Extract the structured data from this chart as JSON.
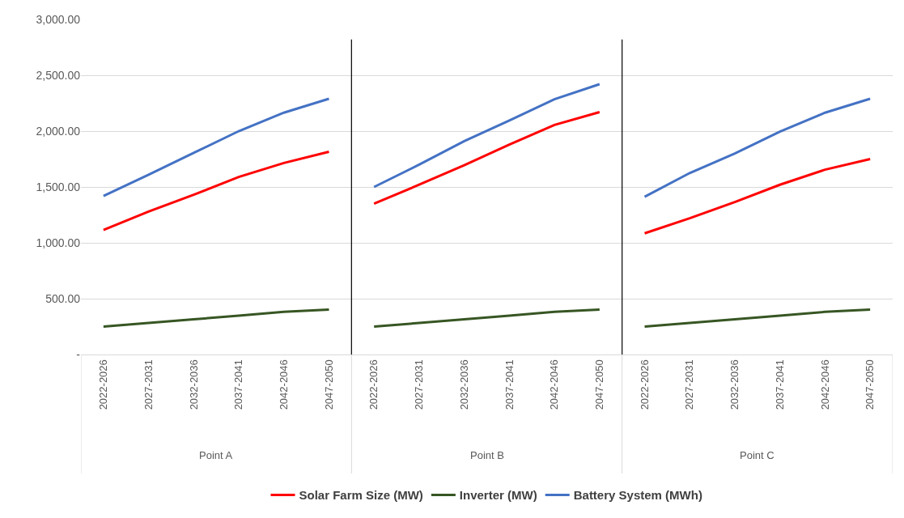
{
  "chart_data": {
    "type": "line",
    "categories": [
      "2022-2026",
      "2027-2031",
      "2032-2036",
      "2037-2041",
      "2042-2046",
      "2047-2050",
      "2022-2026",
      "2027-2031",
      "2032-2036",
      "2037-2041",
      "2042-2046",
      "2047-2050",
      "2022-2026",
      "2027-2031",
      "2032-2036",
      "2037-2041",
      "2042-2046",
      "2047-2050"
    ],
    "series": [
      {
        "name": "Solar Farm Size (MW)",
        "color": "#ff0000",
        "values": [
          1115,
          1280,
          1430,
          1590,
          1715,
          1815,
          1350,
          1520,
          1695,
          1880,
          2055,
          2170,
          1085,
          1220,
          1365,
          1520,
          1655,
          1750
        ]
      },
      {
        "name": "Inverter (MW)",
        "color": "#375623",
        "values": [
          250,
          282,
          315,
          348,
          382,
          403,
          250,
          282,
          315,
          348,
          382,
          403,
          250,
          282,
          315,
          348,
          382,
          403
        ]
      },
      {
        "name": "Battery System (MWh)",
        "color": "#4472c4",
        "values": [
          1420,
          1610,
          1805,
          2000,
          2165,
          2290,
          1500,
          1700,
          1910,
          2095,
          2285,
          2420,
          1412,
          1625,
          1800,
          1995,
          2165,
          2290
        ]
      }
    ],
    "annotations": [
      "Point A",
      "Point B",
      "Point C"
    ],
    "ylim": [
      0,
      3000
    ],
    "yticks": [
      {
        "value": 0,
        "label": "-"
      },
      {
        "value": 500,
        "label": "500.00"
      },
      {
        "value": 1000,
        "label": "1,000.00"
      },
      {
        "value": 1500,
        "label": "1,500.00"
      },
      {
        "value": 2000,
        "label": "2,000.00"
      },
      {
        "value": 2500,
        "label": "2,500.00"
      },
      {
        "value": 3000,
        "label": "3,000.00"
      }
    ],
    "grid": "y",
    "legend": "bottom",
    "line_style": "solid",
    "marker": "none"
  }
}
